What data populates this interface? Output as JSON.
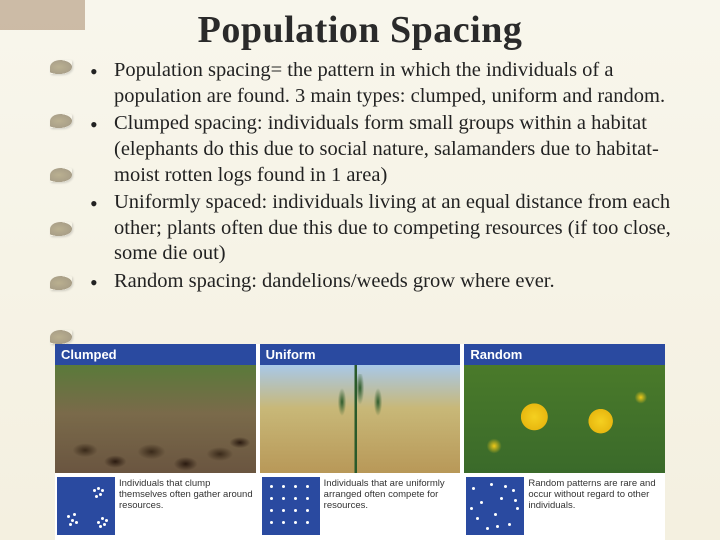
{
  "title": "Population Spacing",
  "bullets": [
    "Population spacing= the pattern in which the individuals of a population are found.  3 main types: clumped, uniform and random.",
    "Clumped spacing: individuals form small groups within a habitat (elephants do this due to social nature, salamanders due to habitat-moist rotten logs found in 1 area)",
    "Uniformly spaced: individuals living at an equal distance from each other; plants often due this due to competing resources (if too close, some die out)",
    "Random spacing: dandelions/weeds grow where ever."
  ],
  "panels": [
    {
      "header": "Clumped",
      "img_class": "clumped",
      "caption": "Individuals that clump themselves often gather around resources.",
      "dot_pattern": "clumped"
    },
    {
      "header": "Uniform",
      "img_class": "uniform",
      "caption": "Individuals that are uniformly arranged often compete for resources.",
      "dot_pattern": "uniform"
    },
    {
      "header": "Random",
      "img_class": "random",
      "caption": "Random patterns are rare and occur without regard to other individuals.",
      "dot_pattern": "random"
    }
  ],
  "colors": {
    "panel_header_bg": "#2a4aa0",
    "dot_box_bg": "#2a4aa0",
    "dot_color": "#ffffff",
    "slide_bg_top": "#f8f6ec",
    "slide_bg_bottom": "#f4f0e0"
  },
  "dot_patterns": {
    "clumped": [
      [
        10,
        38
      ],
      [
        14,
        42
      ],
      [
        16,
        36
      ],
      [
        12,
        46
      ],
      [
        18,
        44
      ],
      [
        36,
        12
      ],
      [
        40,
        10
      ],
      [
        42,
        16
      ],
      [
        38,
        18
      ],
      [
        44,
        12
      ],
      [
        40,
        44
      ],
      [
        44,
        40
      ],
      [
        46,
        46
      ],
      [
        42,
        48
      ],
      [
        48,
        42
      ]
    ],
    "uniform": [
      [
        8,
        8
      ],
      [
        20,
        8
      ],
      [
        32,
        8
      ],
      [
        44,
        8
      ],
      [
        8,
        20
      ],
      [
        20,
        20
      ],
      [
        32,
        20
      ],
      [
        44,
        20
      ],
      [
        8,
        32
      ],
      [
        20,
        32
      ],
      [
        32,
        32
      ],
      [
        44,
        32
      ],
      [
        8,
        44
      ],
      [
        20,
        44
      ],
      [
        32,
        44
      ],
      [
        44,
        44
      ]
    ],
    "random": [
      [
        6,
        10
      ],
      [
        24,
        6
      ],
      [
        46,
        12
      ],
      [
        14,
        24
      ],
      [
        34,
        20
      ],
      [
        50,
        30
      ],
      [
        10,
        40
      ],
      [
        28,
        36
      ],
      [
        42,
        46
      ],
      [
        20,
        50
      ],
      [
        38,
        8
      ],
      [
        48,
        22
      ],
      [
        4,
        30
      ],
      [
        30,
        48
      ]
    ]
  }
}
